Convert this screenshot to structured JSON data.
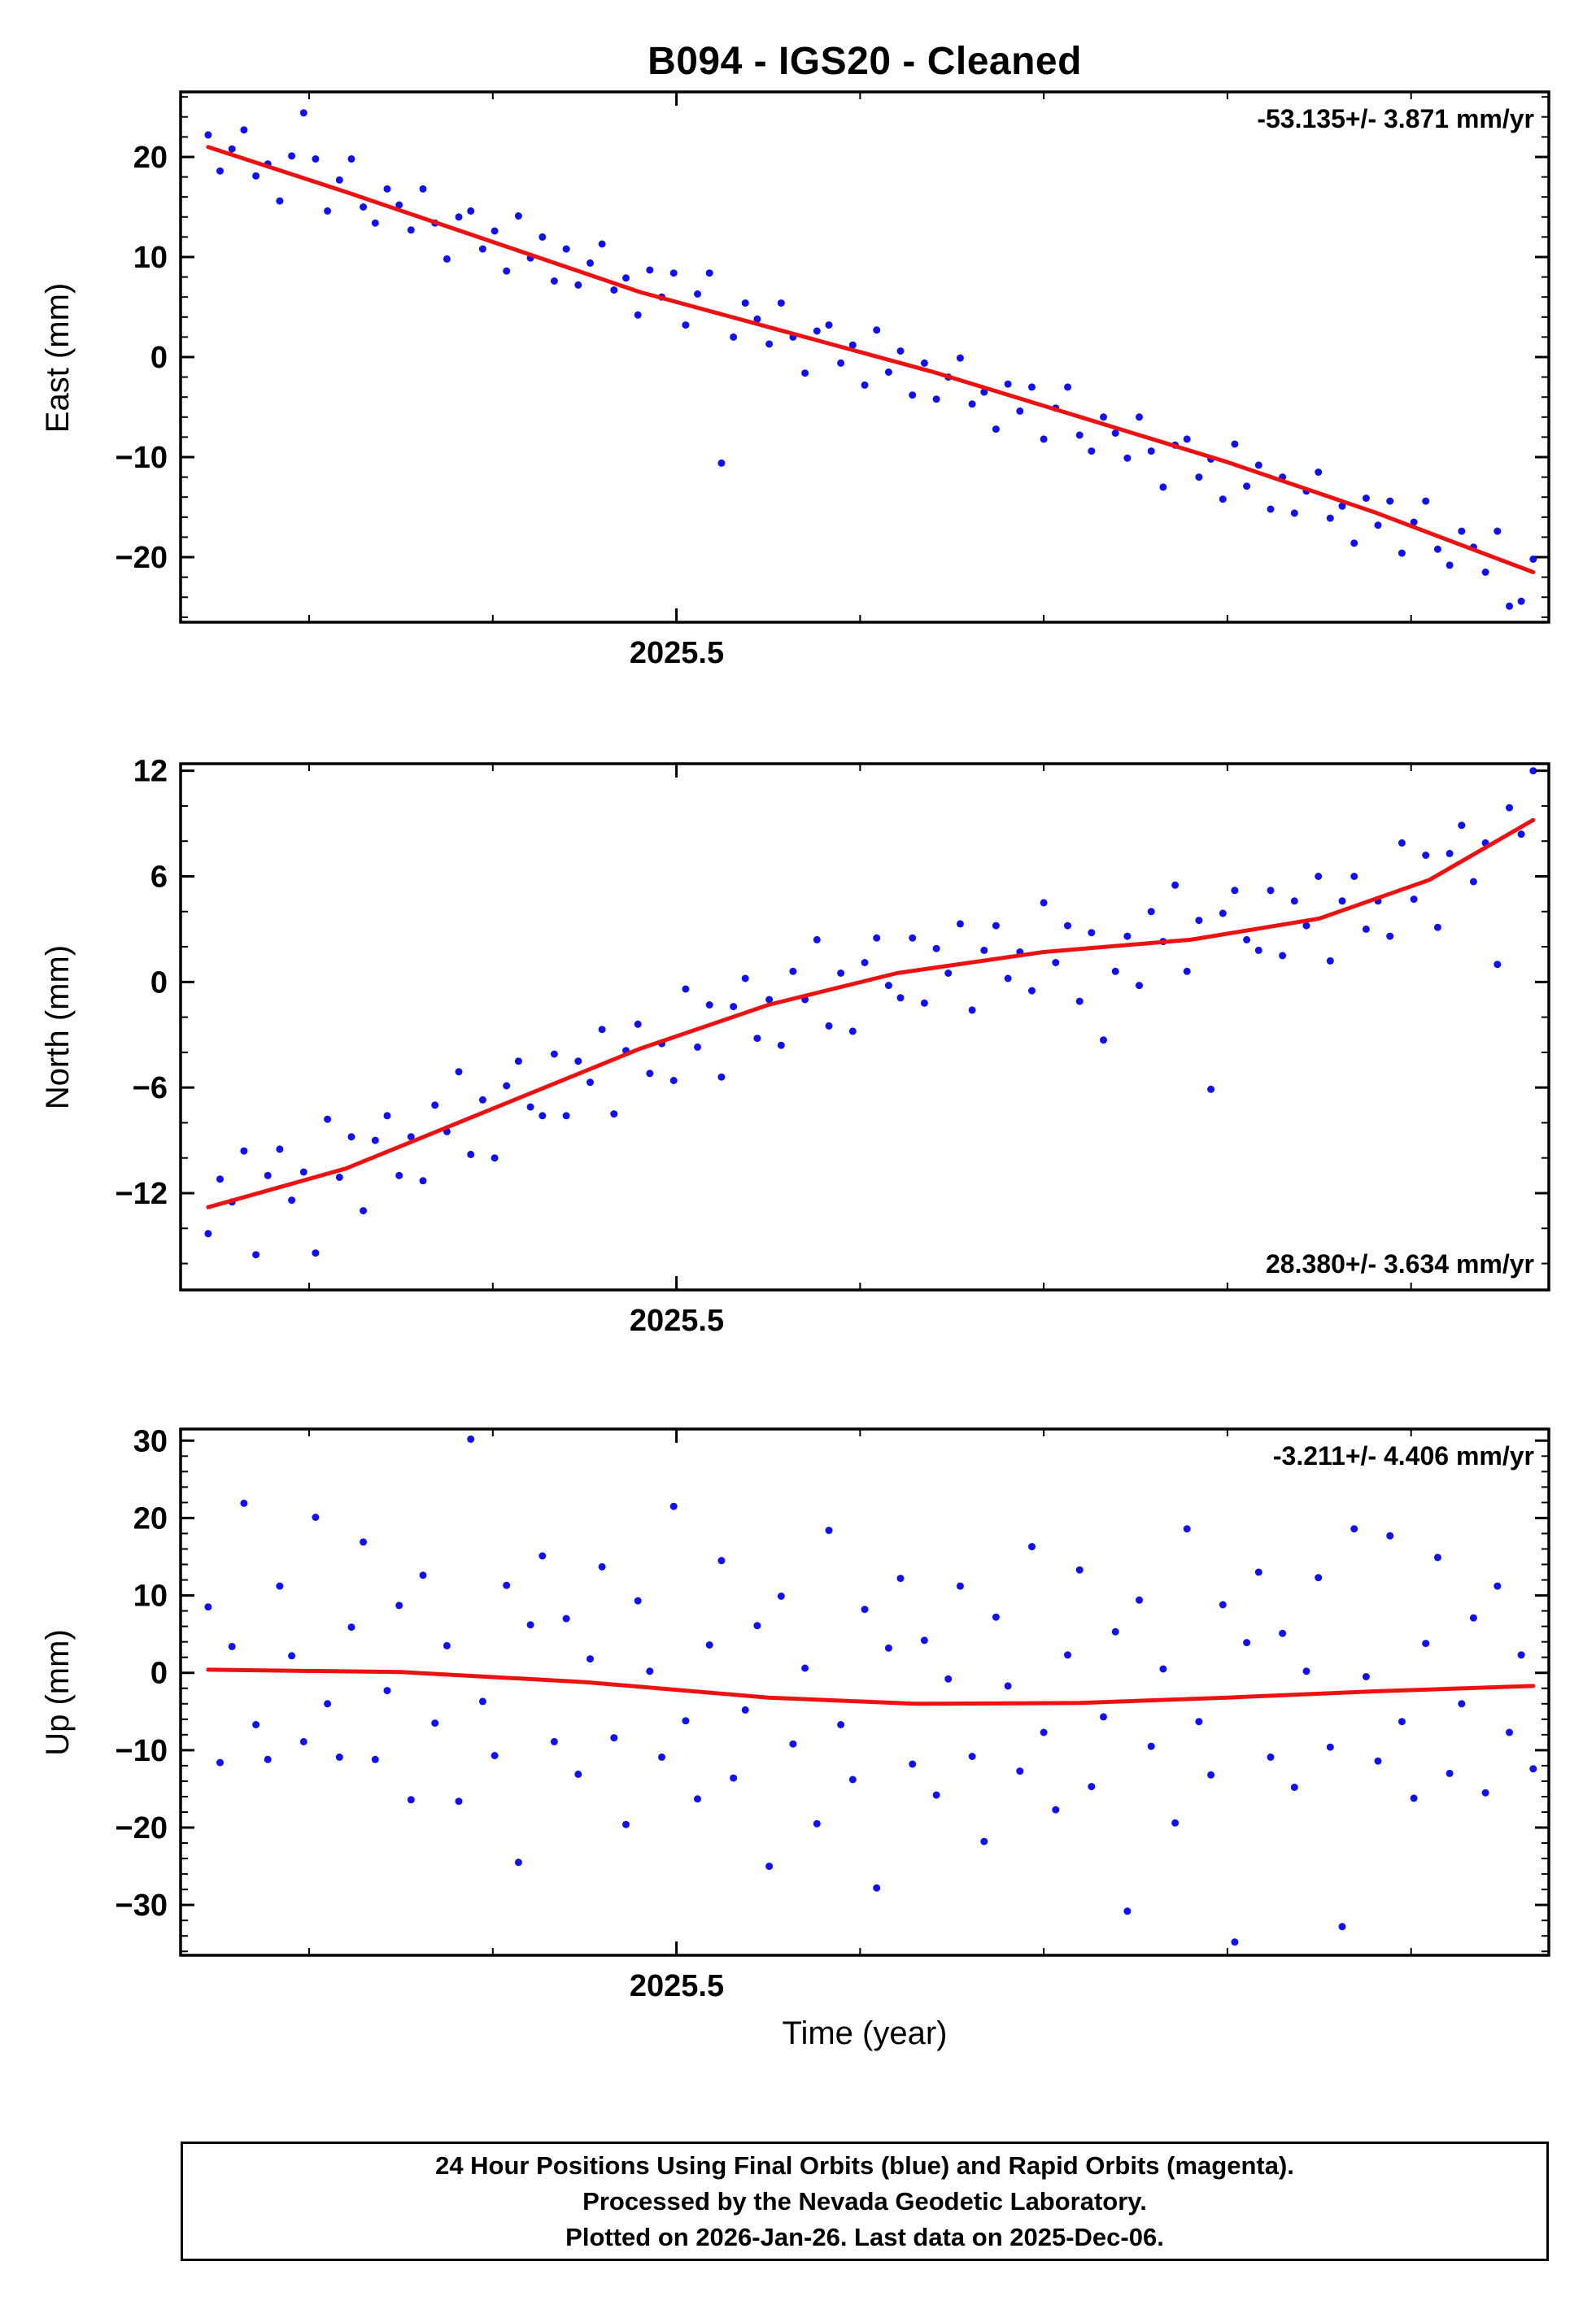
{
  "title": "B094  - IGS20 - Cleaned",
  "xlabel": "Time (year)",
  "caption": {
    "line1": "24 Hour Positions Using Final Orbits (blue) and Rapid Orbits (magenta).",
    "line2": "Processed by the Nevada Geodetic Laboratory.",
    "line3": "Plotted on 2026-Jan-26. Last data on 2025-Dec-06."
  },
  "colors": {
    "points": "#1111ee",
    "trend": "#ee1111",
    "frame": "#000000"
  },
  "chart_data": {
    "type": "scatter",
    "title": "B094  - IGS20 - Cleaned",
    "xlabel": "Time (year)",
    "x": {
      "start": 2025.245,
      "step": 0.0065,
      "count": 112
    },
    "xlim": [
      2025.23,
      2025.975
    ],
    "x_major": [
      2025.5
    ],
    "x_major_labels": [
      "2025.5"
    ],
    "x_minor_step": 0.1,
    "legend": "none",
    "panels": [
      {
        "name": "east",
        "ylabel": "East (mm)",
        "ylim": [
          -26.5,
          26.5
        ],
        "yticks": [
          -20,
          -10,
          0,
          10,
          20
        ],
        "ytick_labels": [
          "−20",
          "−10",
          "0",
          "10",
          "20"
        ],
        "yminor_step": 2,
        "rate_label": "-53.135+/- 3.871 mm/yr",
        "rate_pos": "top",
        "scatter_y": [
          22.2,
          18.6,
          20.8,
          22.7,
          18.1,
          19.3,
          15.6,
          20.1,
          24.4,
          19.8,
          14.6,
          17.7,
          19.8,
          15.0,
          13.4,
          16.8,
          15.2,
          12.7,
          16.8,
          13.4,
          9.8,
          14.0,
          14.6,
          10.8,
          12.6,
          8.6,
          14.1,
          9.9,
          12.0,
          7.6,
          10.8,
          7.2,
          9.4,
          11.3,
          6.7,
          7.9,
          4.2,
          8.7,
          6.0,
          8.4,
          3.2,
          6.3,
          8.4,
          -10.6,
          2.0,
          5.4,
          3.8,
          1.3,
          5.4,
          2.0,
          -1.6,
          2.6,
          3.2,
          -0.6,
          1.2,
          -2.8,
          2.7,
          -1.5,
          0.6,
          -3.8,
          -0.6,
          -4.2,
          -2.0,
          -0.1,
          -4.7,
          -3.5,
          -7.2,
          -2.7,
          -5.4,
          -3.0,
          -8.2,
          -5.1,
          -3.0,
          -7.8,
          -9.4,
          -6.0,
          -7.6,
          -10.1,
          -6.0,
          -9.4,
          -13.0,
          -8.8,
          -8.2,
          -12.0,
          -10.2,
          -14.2,
          -8.7,
          -12.9,
          -10.8,
          -15.2,
          -12.0,
          -15.6,
          -13.4,
          -11.5,
          -16.1,
          -14.9,
          -18.6,
          -14.1,
          -16.8,
          -14.4,
          -19.6,
          -16.5,
          -14.4,
          -19.2,
          -20.8,
          -17.4,
          -19.0,
          -21.5,
          -17.4,
          -24.9,
          -24.4,
          -20.2
        ],
        "trend": [
          [
            2025.245,
            21
          ],
          [
            2025.32,
            16.5
          ],
          [
            2025.4,
            11.5
          ],
          [
            2025.48,
            6.5
          ],
          [
            2025.56,
            2.5
          ],
          [
            2025.64,
            -1.5
          ],
          [
            2025.72,
            -6
          ],
          [
            2025.8,
            -10.5
          ],
          [
            2025.88,
            -15.5
          ],
          [
            2025.9665,
            -21.5
          ]
        ]
      },
      {
        "name": "north",
        "ylabel": "North (mm)",
        "ylim": [
          -17.5,
          12.4
        ],
        "yticks": [
          -12,
          -6,
          0,
          6,
          12
        ],
        "ytick_labels": [
          "−12",
          "−6",
          "0",
          "6",
          "12"
        ],
        "yminor_step": 2,
        "rate_label": "28.380+/- 3.634 mm/yr",
        "rate_pos": "bottom",
        "scatter_y": [
          -14.3,
          -11.2,
          -12.5,
          -9.6,
          -15.5,
          -11.0,
          -9.5,
          -12.4,
          -10.8,
          -15.4,
          -7.8,
          -11.1,
          -8.8,
          -13.0,
          -9.0,
          -7.6,
          -11.0,
          -8.8,
          -11.3,
          -7.0,
          -8.5,
          -5.1,
          -9.8,
          -6.7,
          -10.0,
          -5.9,
          -4.5,
          -7.1,
          -7.6,
          -4.1,
          -7.6,
          -4.5,
          -5.7,
          -2.7,
          -7.5,
          -3.9,
          -2.4,
          -5.2,
          -3.5,
          -5.6,
          -0.4,
          -3.7,
          -1.3,
          -5.4,
          -1.4,
          0.2,
          -3.2,
          -1.0,
          -3.6,
          0.6,
          -1.0,
          2.4,
          -2.5,
          0.5,
          -2.8,
          1.1,
          2.5,
          -0.2,
          -0.9,
          2.5,
          -1.2,
          1.9,
          0.5,
          3.3,
          -1.6,
          1.8,
          3.2,
          0.2,
          1.7,
          -0.5,
          4.5,
          1.1,
          3.2,
          -1.1,
          2.8,
          -3.3,
          0.6,
          2.6,
          -0.2,
          4.0,
          2.3,
          5.5,
          0.6,
          3.5,
          -6.1,
          3.9,
          5.2,
          2.4,
          1.8,
          5.2,
          1.5,
          4.6,
          3.2,
          6.0,
          1.2,
          4.6,
          6.0,
          3.0,
          4.6,
          2.6,
          7.9,
          4.7,
          7.2,
          3.1,
          7.3,
          8.9,
          5.7,
          7.9,
          1.0,
          9.9,
          8.4,
          12.0
        ],
        "trend": [
          [
            2025.245,
            -12.8
          ],
          [
            2025.32,
            -10.6
          ],
          [
            2025.4,
            -7.2
          ],
          [
            2025.48,
            -3.8
          ],
          [
            2025.55,
            -1.3
          ],
          [
            2025.62,
            0.5
          ],
          [
            2025.7,
            1.7
          ],
          [
            2025.78,
            2.4
          ],
          [
            2025.85,
            3.6
          ],
          [
            2025.91,
            5.8
          ],
          [
            2025.9665,
            9.2
          ]
        ]
      },
      {
        "name": "up",
        "ylabel": "Up (mm)",
        "ylim": [
          -36.5,
          31.5
        ],
        "yticks": [
          -30,
          -20,
          -10,
          0,
          10,
          20,
          30
        ],
        "ytick_labels": [
          "−30",
          "−20",
          "−10",
          "0",
          "10",
          "20",
          "30"
        ],
        "yminor_step": 2,
        "rate_label": "-3.211+/- 4.406 mm/yr",
        "rate_pos": "top",
        "scatter_y": [
          8.5,
          -11.6,
          3.4,
          21.9,
          -6.7,
          -11.2,
          11.2,
          2.2,
          -8.9,
          20.1,
          -4.0,
          -10.9,
          5.9,
          16.9,
          -11.2,
          -2.3,
          8.7,
          -16.4,
          12.6,
          -6.5,
          3.5,
          -16.6,
          30.2,
          -3.7,
          -10.7,
          11.3,
          -24.5,
          6.2,
          15.1,
          -8.9,
          7.0,
          -13.1,
          1.8,
          13.7,
          -8.4,
          -19.6,
          9.3,
          0.2,
          -10.9,
          21.5,
          -6.2,
          -16.3,
          3.6,
          14.5,
          -13.6,
          -4.8,
          6.1,
          -25.0,
          9.9,
          -9.2,
          0.6,
          -19.5,
          18.4,
          -6.7,
          -13.8,
          8.2,
          -27.8,
          3.2,
          12.2,
          -11.8,
          4.2,
          -15.8,
          -0.8,
          11.2,
          -10.8,
          -21.8,
          7.2,
          -1.7,
          -12.7,
          16.3,
          -7.7,
          -17.7,
          2.3,
          13.3,
          -14.7,
          -5.7,
          5.3,
          -30.8,
          9.4,
          -9.5,
          0.5,
          -19.4,
          18.6,
          -6.3,
          -13.2,
          8.8,
          -34.8,
          3.9,
          13.0,
          -10.9,
          5.1,
          -14.8,
          0.2,
          12.3,
          -9.6,
          -32.8,
          18.6,
          -0.5,
          -11.4,
          17.7,
          -6.3,
          -16.2,
          3.8,
          14.9,
          -13.0,
          -4.0,
          7.1,
          -15.5,
          11.2,
          -7.7,
          2.3,
          -12.4
        ],
        "trend": [
          [
            2025.245,
            0.4
          ],
          [
            2025.35,
            0.1
          ],
          [
            2025.45,
            -1.2
          ],
          [
            2025.55,
            -3.2
          ],
          [
            2025.63,
            -4.0
          ],
          [
            2025.72,
            -3.9
          ],
          [
            2025.8,
            -3.2
          ],
          [
            2025.88,
            -2.4
          ],
          [
            2025.9665,
            -1.7
          ]
        ]
      }
    ]
  }
}
